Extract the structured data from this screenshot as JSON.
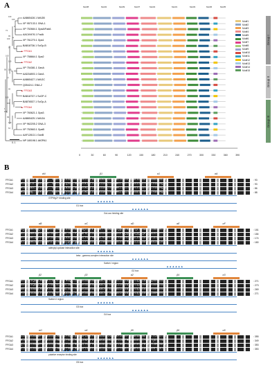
{
  "panels": {
    "a": "A",
    "b": "B"
  },
  "tree": {
    "leaves": [
      {
        "label": "AAB65428.1 MAGB",
        "red": false
      },
      {
        "label": "XP 957133.1 GNA-1",
        "red": false
      },
      {
        "label": "XP 752684.1 GpaA/FadA",
        "red": false
      },
      {
        "label": "AAC49476.1 FadA",
        "red": false
      },
      {
        "label": "XP 761270.1 Gpa1",
        "red": false
      },
      {
        "label": "BAB18736.1 ScGp-B",
        "red": false
      },
      {
        "label": "FFGA1",
        "red": true
      },
      {
        "label": "XP 758664.1 Gpa2",
        "red": false
      },
      {
        "label": "FFGA2",
        "red": true
      },
      {
        "label": "XP 754381.1 GanA",
        "red": false
      },
      {
        "label": "AAD34893.1 GanA",
        "red": false
      },
      {
        "label": "AAB65427.1 MAGC",
        "red": false
      },
      {
        "label": "Q05424.1 GNA-2",
        "red": false
      },
      {
        "label": "FFGA3",
        "red": true
      },
      {
        "label": "BAB18737.1 ScGP-C",
        "red": false
      },
      {
        "label": "BAB76537.1 ScGp-A",
        "red": false
      },
      {
        "label": "FFGA4",
        "red": true
      },
      {
        "label": "XP 760621.1 Gpa3",
        "red": false
      },
      {
        "label": "AAB65425.1 MAGA",
        "red": false
      },
      {
        "label": "XP 962205.2 GNA-3",
        "red": false
      },
      {
        "label": "XP 752663.1 GpaB",
        "red": false
      },
      {
        "label": "AAF12813.1 GanB",
        "red": false
      },
      {
        "label": "NP 180198.1 AtGPA1",
        "red": false
      }
    ],
    "bootstrap": [
      "100",
      "100",
      "73",
      "99",
      "100",
      "97",
      "100",
      "100",
      "95",
      "100",
      "77",
      "99",
      "100",
      "100",
      "100",
      "99",
      "100",
      "64",
      "95",
      "100"
    ],
    "scale": "0.1"
  },
  "motif_headers": [
    "Motif8",
    "Motif2",
    "Motif9",
    "Motif7",
    "Motif4",
    "Motif1",
    "Motif3",
    "Motif6",
    "Motif5"
  ],
  "legend": [
    {
      "label": "Motif1",
      "color": "#e8c97a"
    },
    {
      "label": "Motif2",
      "color": "#8fa8c8"
    },
    {
      "label": "Motif3",
      "color": "#f3a04c"
    },
    {
      "label": "Motif4",
      "color": "#ee8a8a"
    },
    {
      "label": "Motif5",
      "color": "#1c5e8c"
    },
    {
      "label": "Motif6",
      "color": "#3e8b3a"
    },
    {
      "label": "Motif7",
      "color": "#e03c8c"
    },
    {
      "label": "Motif8",
      "color": "#a8d178"
    },
    {
      "label": "Motif9",
      "color": "#9aa4d4"
    },
    {
      "label": "Motif10",
      "color": "#d64a40"
    },
    {
      "label": "Motif11",
      "color": "#31a2c4"
    },
    {
      "label": "Motif12",
      "color": "#f2c400"
    },
    {
      "label": "Motif13",
      "color": "#a4c9e6"
    },
    {
      "label": "Motif14",
      "color": "#9c6bb5"
    },
    {
      "label": "Motif15",
      "color": "#5b9b5b"
    }
  ],
  "groups": [
    {
      "label": "Group I",
      "color": "#9a9a9a"
    },
    {
      "label": "Group II",
      "color": "#c1c1c1"
    },
    {
      "label": "Group III",
      "color": "#6f9a70"
    }
  ],
  "axis_ticks": [
    "0",
    "30",
    "60",
    "90",
    "120",
    "150",
    "180",
    "210",
    "240",
    "270",
    "300",
    "330",
    "360",
    "390"
  ],
  "alignment": {
    "names": [
      "FFGA1",
      "FFGA2",
      "FFGA3",
      "FFGA4"
    ],
    "blocks": [
      {
        "ss": [
          "αN",
          "β1",
          "α1",
          "αA"
        ],
        "seqs": [
          "MGCMGSSK--EEPQAR..SRRIEQSLKRDKMVKSNVKILLLGAGESGKSTVLKQMKLIHGGGYNEAEKEYRDVIHSNAIQSCAR",
          "MGCGMSTE-DKEGKAR..SREIDKSIQRDKLRERREVKILLLGAGESGKSTILKQMRLIHGTGYSEKERLEYRSVIYSNIMQSAR",
          "MGLLASKS--EASPSE..SAEIDRLINAEALRKKREVKLLLLGAGESGKSTVLKQMKIIHGTGFSPEELRAYRDIIYSNIMQSAR",
          "MGCGASQ--LDKVETE..ETAPDRLIVEELKRRSREIKLLLLGAGESGKSTVLKQMKLIHGTGYTEAELETFRGIIYANTMQGTQ"
        ],
        "ends": [
          "93",
          "93",
          "86",
          "88"
        ],
        "annotations": [
          "GTPMg2+ binding site",
          "G1 box",
          "GoLoco binding site"
        ]
      },
      {
        "ss": [
          "αB",
          "αC",
          "αD",
          "αE",
          "αF"
        ],
        "seqs": [
          "RQIVRAMEKLQIPWDRPELEENAALIASESMGEAEAQLLPEEIGRALTSLWNDRGIQQCYERAHEYQLTDSADYYLDALDRIYD",
          "RDIVRAMKALRIPWERESKEKLTPNNLIHATVTSQWPNLSVDRSDSHRMLRTLHEGSEYIQQWFRSQQQEQRYQLSDSTEFY",
          "KDIVAAMLQLDLVYEDPDRGESLLQLRALSDKLLPELFGQLHPDPELRLAHCLMAYYERQDLAKAGLAYLGDSSYFGEVFKPD",
          "KTIVAAMEKLGIKWDNPATHEHASNLLQLTPQEPELDPIDNDLILRIRKLWSHPAVEESLPHCKELLLDSAAYFLENINRLR"
        ],
        "ends": [
          "181",
          "184",
          "174",
          "180"
        ],
        "annotations": [
          "adenylyl cyclase interaction site",
          "beta - gamma-complex interaction site",
          "Switch I region",
          "G2 box"
        ]
      },
      {
        "ss": [
          "β2",
          "β3",
          "α2",
          "β4",
          "α3"
        ],
        "seqs": [
          "ADYIPTEQDVLRSRVKTTGITETRFTMGQLTIRMFDVGGQRSERKKWIHCFENVTSIIFCVALSEYDQVLLEESGQNRMMESL",
          "ANYVPTEQDILRSRVKTSGITEIQFDLGNLTFRMFDVGGQRSERRKWIHCFEEVTCIIFCVAISAYDQVLVEDESVNRMQEAL",
          "AKYAPTENDILRSRIKTTGIREVMFSLSGVTYQVFDVGGQRGERRKWIHCFENVDAILFLVATSDYDQTLEEDYSVNRMDESL",
          "PDYLPTDDDILLSRVKTTGITETEFKAENTLFSMFDVGGQRSERRKWIHCFDDVQAVIFVVAISEYDQTLEEDNTINRMEESI"
        ],
        "ends": [
          "271",
          "273",
          "269",
          "271"
        ],
        "annotations": [
          "Switch II region",
          "G3 box",
          "G4 box"
        ]
      },
      {
        "ss": [
          "αG",
          "α4",
          "β5",
          "β6",
          "α5"
        ],
        "seqs": [
          "LLFDSVCNSRWFVNTSIILFLNKFDLFRQKLQSGTSPLKKEFPQYSGGEDVSKAAKYILWRFTQVNRARLNLYPHLTCATDTSN",
          "MLFDSICNSRWFVKTSIILFLNKIDLFKEKLPRSPLRNFFPDYSGGKDDVNKAAKYILWRFMQANRARLSIYPHVTQATDTSN",
          "QLFESICNSRWFEKTSIILFLNKIDLFEKKLRAGKLLYDYFPDYDGGADFEAATSYIRERFLDINRSRLDPHSHIYCHMTNATD",
          "ELFDSVCNSKWFKDTSIIVFLNKMDLFRRKLRLGKSPLSKHFPHFHGDNSIEAAVEFFARKFLEVNRGSAKRKIFVHFTTATD"
        ],
        "ends": [
          "355",
          "349",
          "353",
          "353"
        ],
        "annotations": [
          "putative receptor binding site",
          "G5 box"
        ]
      }
    ]
  }
}
